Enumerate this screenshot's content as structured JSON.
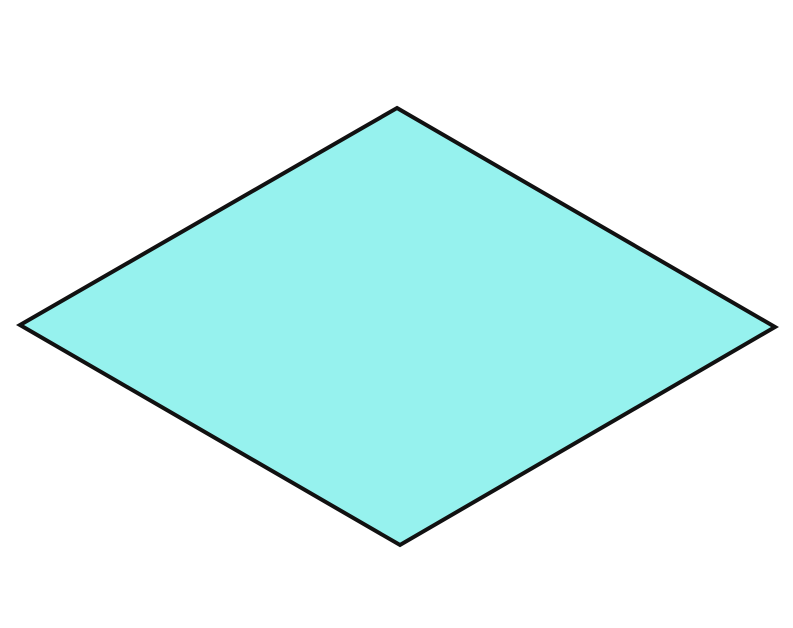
{
  "diagram": {
    "shape": "rhombus",
    "fill_color": "#96F2EE",
    "stroke_color": "#111111"
  }
}
